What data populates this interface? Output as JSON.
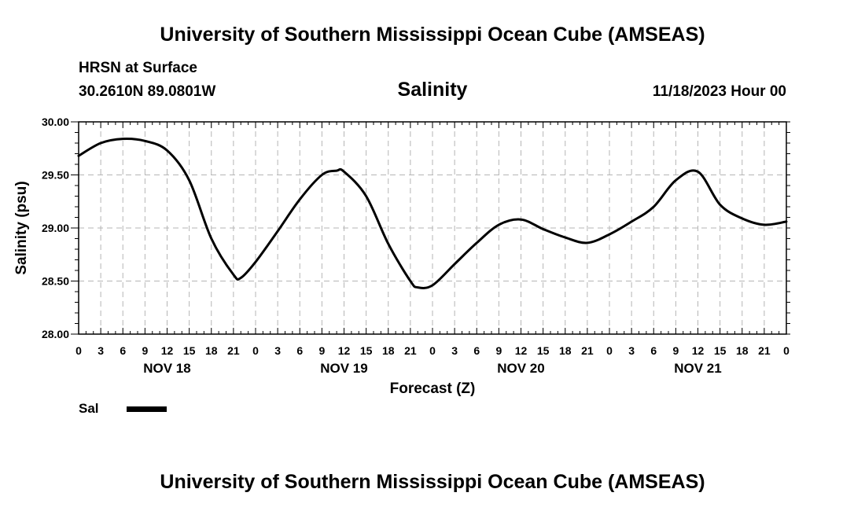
{
  "header": {
    "title": "University of Southern Mississippi Ocean Cube (AMSEAS)",
    "station": "HRSN at Surface",
    "coords": "30.2610N  89.0801W",
    "date": "11/18/2023 Hour 00"
  },
  "footer": {
    "title": "University of Southern Mississippi Ocean Cube (AMSEAS)"
  },
  "chart_data": {
    "type": "line",
    "title": "Salinity",
    "xlabel": "Forecast (Z)",
    "ylabel": "Salinity (psu)",
    "xlim": [
      0,
      96
    ],
    "ylim": [
      28.0,
      30.0
    ],
    "grid": true,
    "yticks": [
      "28.00",
      "28.50",
      "29.00",
      "29.50",
      "30.00"
    ],
    "xtick_labels": [
      "0",
      "3",
      "6",
      "9",
      "12",
      "15",
      "18",
      "21",
      "0",
      "3",
      "6",
      "9",
      "12",
      "15",
      "18",
      "21",
      "0",
      "3",
      "6",
      "9",
      "12",
      "15",
      "18",
      "21",
      "0",
      "3",
      "6",
      "9",
      "12",
      "15",
      "18",
      "21",
      "0"
    ],
    "day_labels": [
      {
        "label": "NOV 18",
        "hour": 12
      },
      {
        "label": "NOV 19",
        "hour": 36
      },
      {
        "label": "NOV 20",
        "hour": 60
      },
      {
        "label": "NOV 21",
        "hour": 84
      }
    ],
    "legend": [
      {
        "name": "Sal",
        "color": "#000000"
      }
    ],
    "series": [
      {
        "name": "Sal",
        "x": [
          0,
          3,
          6,
          9,
          12,
          15,
          18,
          21,
          22,
          24,
          27,
          30,
          33,
          35,
          36,
          39,
          42,
          45,
          46,
          48,
          51,
          54,
          57,
          60,
          63,
          66,
          69,
          72,
          75,
          78,
          81,
          84,
          87,
          90,
          93,
          96
        ],
        "values": [
          29.68,
          29.8,
          29.84,
          29.82,
          29.73,
          29.45,
          28.9,
          28.56,
          28.53,
          28.68,
          28.97,
          29.27,
          29.5,
          29.54,
          29.53,
          29.3,
          28.85,
          28.5,
          28.44,
          28.46,
          28.66,
          28.86,
          29.03,
          29.08,
          28.99,
          28.91,
          28.86,
          28.94,
          29.06,
          29.2,
          29.45,
          29.53,
          29.22,
          29.09,
          29.03,
          29.06
        ]
      }
    ]
  }
}
